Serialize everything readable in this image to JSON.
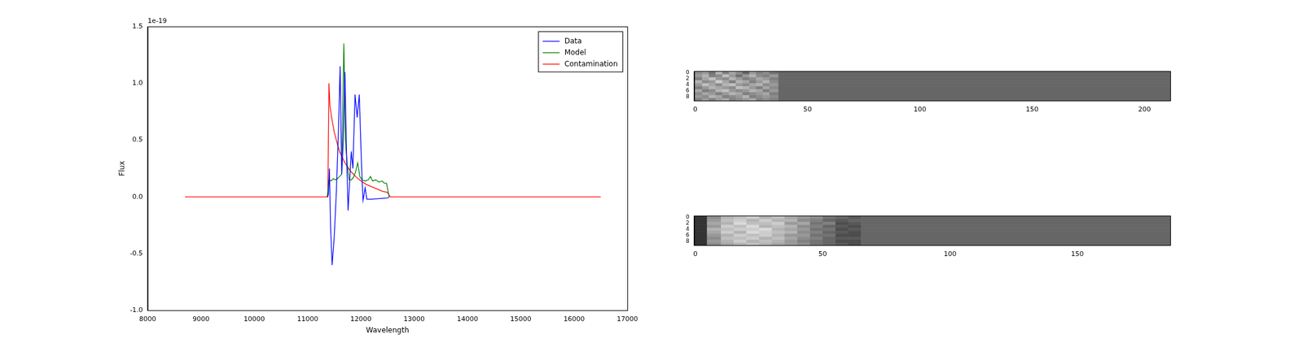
{
  "chart_data": [
    {
      "type": "line",
      "x_label": "Wavelength",
      "y_label": "Flux",
      "annotations": [
        "1e-19"
      ],
      "xlim": [
        8000,
        17000
      ],
      "xticks": [
        8000,
        9000,
        10000,
        11000,
        12000,
        13000,
        14000,
        15000,
        16000,
        17000
      ],
      "ylim": [
        -1.0,
        1.5
      ],
      "yticks": [
        {
          "value": -1.0,
          "label": "-1.0"
        },
        {
          "value": -0.5,
          "label": "-0.5"
        },
        {
          "value": 0,
          "label": "0.0"
        },
        {
          "value": 0.5,
          "label": "0.5"
        },
        {
          "value": 1.0,
          "label": "1.0"
        },
        {
          "value": 1.5,
          "label": "1.5"
        }
      ],
      "legend": "upper right",
      "grid": false,
      "series": [
        {
          "name": "Data",
          "color": "#0000ff",
          "x": [
            11370,
            11390,
            11410,
            11430,
            11460,
            11500,
            11540,
            11580,
            11610,
            11640,
            11670,
            11700,
            11730,
            11760,
            11790,
            11820,
            11850,
            11890,
            11930,
            11970,
            12010,
            12040,
            12080,
            12110,
            12200,
            12350,
            12500,
            12530
          ],
          "values": [
            0,
            0.02,
            0.25,
            -0.25,
            -0.6,
            -0.35,
            0.05,
            0.6,
            1.15,
            0.2,
            0.5,
            1.1,
            0.4,
            -0.12,
            0.15,
            0.4,
            0.25,
            0.9,
            0.7,
            0.9,
            0.3,
            -0.03,
            0.08,
            -0.02,
            -0.02,
            -0.015,
            -0.01,
            0
          ]
        },
        {
          "name": "Model",
          "color": "#008000",
          "x": [
            11370,
            11400,
            11440,
            11480,
            11520,
            11560,
            11600,
            11640,
            11680,
            11710,
            11740,
            11780,
            11820,
            11860,
            11900,
            11940,
            11980,
            12020,
            12080,
            12140,
            12180,
            12220,
            12280,
            12340,
            12400,
            12440,
            12480,
            12510,
            12530
          ],
          "values": [
            0,
            0.15,
            0.14,
            0.16,
            0.15,
            0.16,
            0.18,
            0.2,
            1.35,
            0.5,
            0.3,
            0.15,
            0.15,
            0.17,
            0.22,
            0.3,
            0.18,
            0.15,
            0.14,
            0.15,
            0.18,
            0.14,
            0.15,
            0.13,
            0.14,
            0.12,
            0.12,
            0.05,
            0
          ]
        },
        {
          "name": "Contamination",
          "color": "#ff0000",
          "x": [
            8700,
            11380,
            11400,
            11420,
            11450,
            11500,
            11550,
            11600,
            11700,
            11800,
            11900,
            12000,
            12100,
            12200,
            12300,
            12400,
            12500,
            12550,
            16500
          ],
          "values": [
            0,
            0,
            1.0,
            0.8,
            0.7,
            0.57,
            0.48,
            0.4,
            0.3,
            0.23,
            0.18,
            0.14,
            0.11,
            0.09,
            0.07,
            0.05,
            0.04,
            0,
            0
          ]
        }
      ]
    },
    {
      "type": "heatmap",
      "color": "gray",
      "grid": false,
      "zlim": [
        0,
        1
      ],
      "xlim": [
        -0.5,
        211.5
      ],
      "xticks": [
        0,
        50,
        100,
        150,
        200
      ],
      "ylim": [
        9.5,
        -0.5
      ],
      "yticks": [
        0,
        2,
        4,
        6,
        8
      ],
      "x_edges": [
        -0.5,
        3,
        6,
        9,
        12,
        15,
        18,
        21,
        24,
        27,
        30,
        33,
        37,
        211.5
      ],
      "cells": [
        [
          0.55,
          0.6,
          0.45,
          0.7,
          0.5,
          0.65,
          0.55,
          0.4,
          0.6,
          0.5,
          0.55,
          0.45,
          0.4
        ],
        [
          0.6,
          0.7,
          0.5,
          0.55,
          0.75,
          0.6,
          0.45,
          0.6,
          0.7,
          0.55,
          0.5,
          0.6,
          0.4
        ],
        [
          0.5,
          0.65,
          0.75,
          0.6,
          0.55,
          0.7,
          0.6,
          0.5,
          0.55,
          0.65,
          0.6,
          0.5,
          0.4
        ],
        [
          0.7,
          0.55,
          0.6,
          0.8,
          0.65,
          0.5,
          0.7,
          0.65,
          0.5,
          0.6,
          0.7,
          0.55,
          0.4
        ],
        [
          0.6,
          0.75,
          0.65,
          0.55,
          0.7,
          0.75,
          0.6,
          0.55,
          0.65,
          0.7,
          0.55,
          0.6,
          0.4
        ],
        [
          0.5,
          0.6,
          0.7,
          0.65,
          0.6,
          0.55,
          0.75,
          0.7,
          0.6,
          0.5,
          0.65,
          0.55,
          0.4
        ],
        [
          0.65,
          0.5,
          0.55,
          0.7,
          0.75,
          0.6,
          0.55,
          0.6,
          0.7,
          0.65,
          0.5,
          0.6,
          0.4
        ],
        [
          0.55,
          0.65,
          0.6,
          0.5,
          0.6,
          0.7,
          0.65,
          0.5,
          0.55,
          0.6,
          0.65,
          0.5,
          0.4
        ],
        [
          0.6,
          0.55,
          0.7,
          0.65,
          0.5,
          0.55,
          0.6,
          0.7,
          0.5,
          0.55,
          0.6,
          0.55,
          0.4
        ],
        [
          0.5,
          0.6,
          0.5,
          0.6,
          0.65,
          0.5,
          0.55,
          0.6,
          0.65,
          0.5,
          0.55,
          0.5,
          0.4
        ]
      ]
    },
    {
      "type": "heatmap",
      "color": "gray",
      "grid": false,
      "zlim": [
        0,
        1
      ],
      "xlim": [
        -0.5,
        186.5
      ],
      "xticks": [
        0,
        50,
        100,
        150
      ],
      "ylim": [
        9.5,
        -0.5
      ],
      "yticks": [
        0,
        2,
        4,
        6,
        8
      ],
      "x_edges": [
        -0.5,
        4.5,
        10,
        15,
        20,
        25,
        30,
        35,
        40,
        45,
        50,
        55,
        60,
        65,
        186.5
      ],
      "cells": [
        [
          0.2,
          0.55,
          0.7,
          0.75,
          0.8,
          0.7,
          0.75,
          0.65,
          0.6,
          0.55,
          0.45,
          0.4,
          0.35,
          0.4
        ],
        [
          0.2,
          0.6,
          0.75,
          0.8,
          0.7,
          0.8,
          0.7,
          0.7,
          0.55,
          0.5,
          0.4,
          0.35,
          0.4,
          0.4
        ],
        [
          0.2,
          0.65,
          0.7,
          0.85,
          0.75,
          0.75,
          0.8,
          0.6,
          0.65,
          0.45,
          0.5,
          0.3,
          0.35,
          0.4
        ],
        [
          0.2,
          0.6,
          0.8,
          0.75,
          0.85,
          0.7,
          0.75,
          0.7,
          0.55,
          0.5,
          0.4,
          0.35,
          0.3,
          0.4
        ],
        [
          0.2,
          0.7,
          0.75,
          0.8,
          0.8,
          0.85,
          0.7,
          0.65,
          0.6,
          0.45,
          0.45,
          0.3,
          0.35,
          0.4
        ],
        [
          0.2,
          0.65,
          0.8,
          0.7,
          0.85,
          0.8,
          0.75,
          0.7,
          0.55,
          0.5,
          0.4,
          0.35,
          0.3,
          0.4
        ],
        [
          0.2,
          0.6,
          0.7,
          0.8,
          0.75,
          0.8,
          0.7,
          0.6,
          0.6,
          0.45,
          0.45,
          0.3,
          0.3,
          0.4
        ],
        [
          0.2,
          0.55,
          0.75,
          0.75,
          0.8,
          0.7,
          0.75,
          0.65,
          0.55,
          0.5,
          0.4,
          0.35,
          0.35,
          0.4
        ],
        [
          0.2,
          0.6,
          0.7,
          0.8,
          0.7,
          0.75,
          0.7,
          0.6,
          0.5,
          0.45,
          0.4,
          0.3,
          0.3,
          0.4
        ],
        [
          0.2,
          0.55,
          0.65,
          0.7,
          0.75,
          0.7,
          0.65,
          0.6,
          0.55,
          0.45,
          0.4,
          0.35,
          0.3,
          0.4
        ]
      ]
    }
  ]
}
